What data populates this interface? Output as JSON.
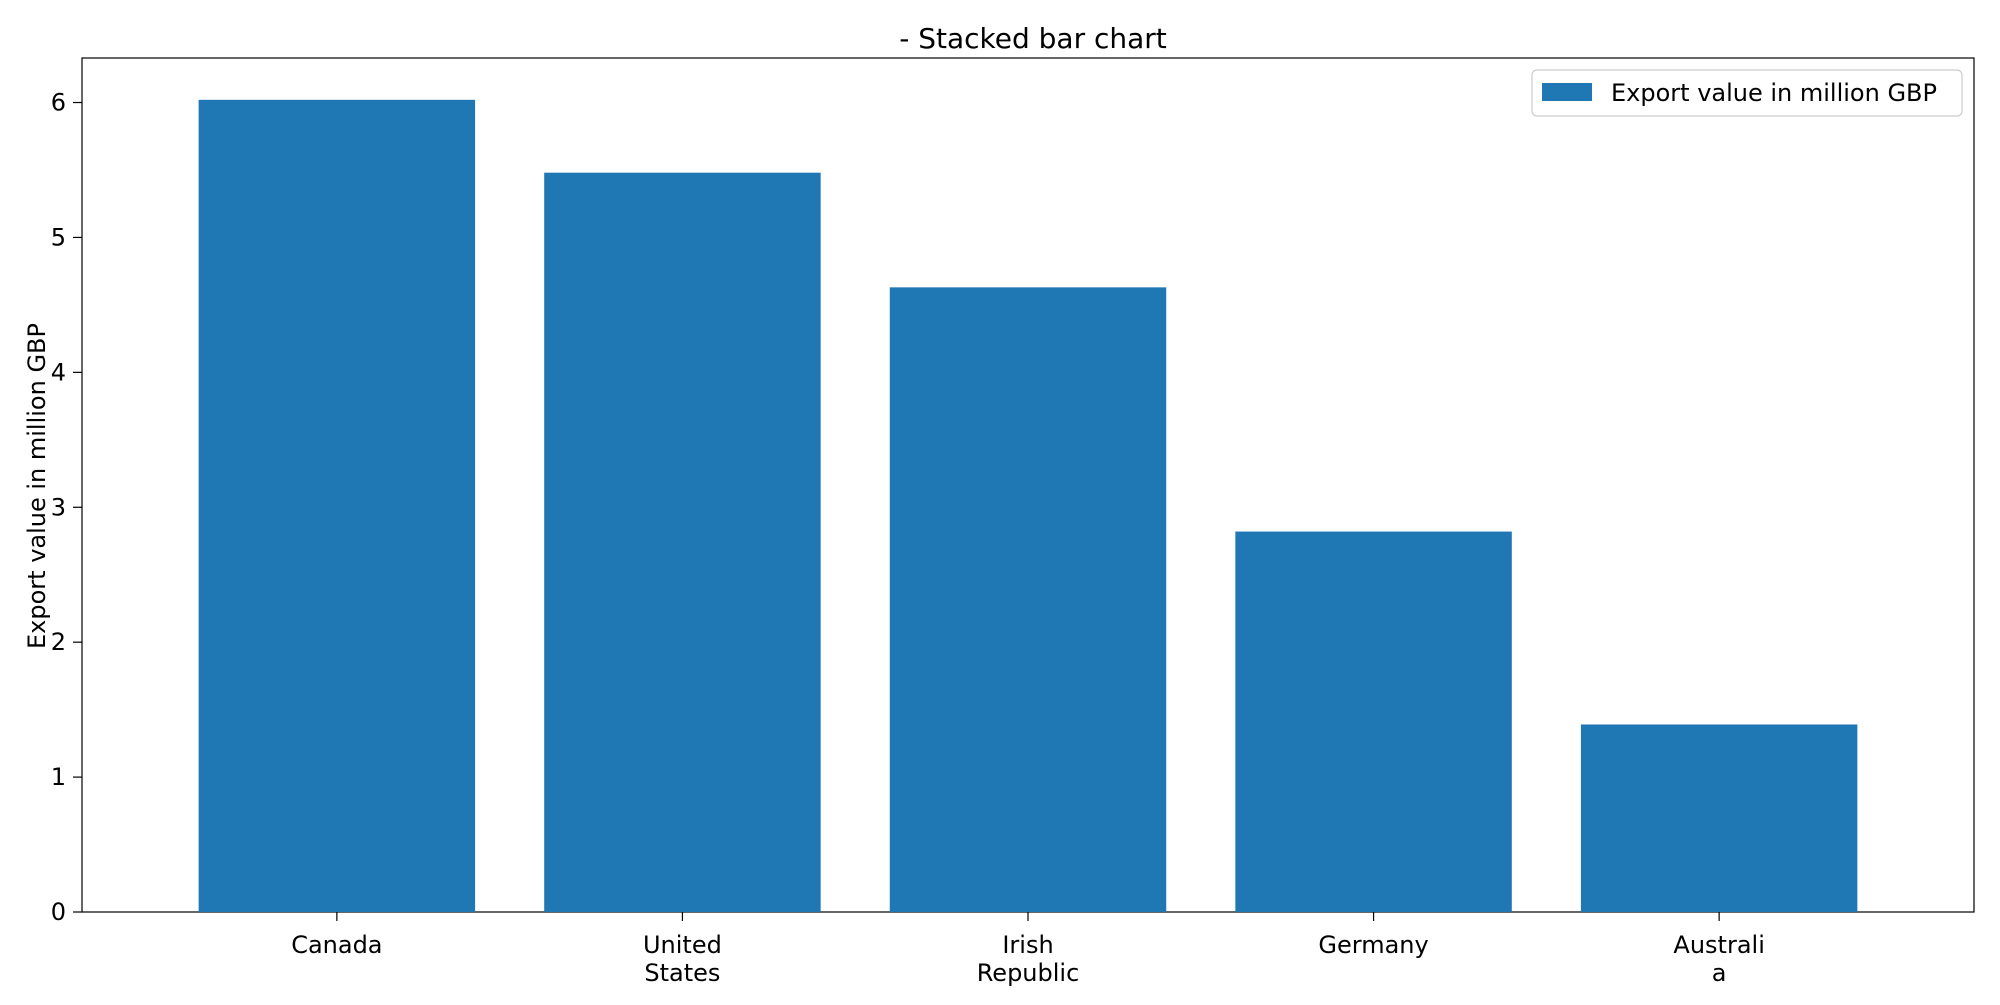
{
  "chart_data": {
    "type": "bar",
    "title": "- Stacked bar chart",
    "xlabel": "",
    "ylabel": "Export value in million GBP",
    "categories": [
      [
        "Canada"
      ],
      [
        "United",
        "States"
      ],
      [
        "Irish",
        "Republic"
      ],
      [
        "Germany"
      ],
      [
        "Australi",
        "a"
      ]
    ],
    "series": [
      {
        "name": "Export value in million GBP",
        "color": "#1f77b4",
        "values": [
          6.02,
          5.48,
          4.63,
          2.82,
          1.39
        ]
      }
    ],
    "yticks": [
      0,
      1,
      2,
      3,
      4,
      5,
      6
    ],
    "ylim": [
      0,
      6.33
    ],
    "grid": false,
    "legend_position": "top-right"
  }
}
